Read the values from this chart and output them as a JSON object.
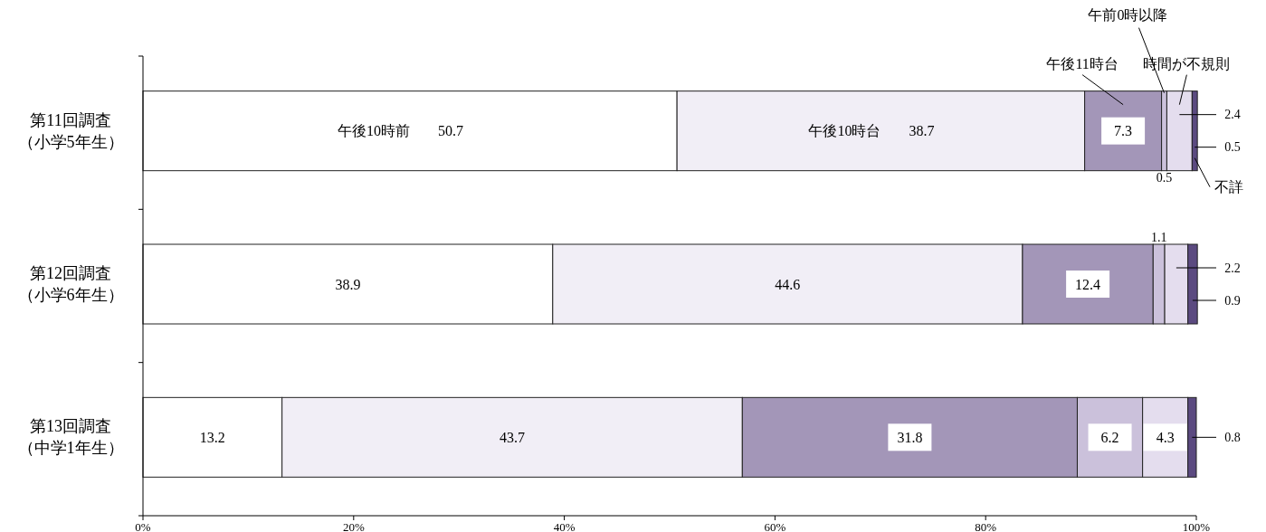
{
  "chart_data": {
    "type": "bar",
    "orientation": "horizontal",
    "stacked": true,
    "data_labels": true,
    "legend": false,
    "grid": false,
    "categories": [
      "第11回調査（小学5年生）",
      "第12回調査（小学6年生）",
      "第13回調査（中学1年生）"
    ],
    "xlim": [
      0,
      100
    ],
    "xticks": [
      {
        "value": 0,
        "label": "0%"
      },
      {
        "value": 20,
        "label": "20%"
      },
      {
        "value": 40,
        "label": "40%"
      },
      {
        "value": 60,
        "label": "60%"
      },
      {
        "value": 80,
        "label": "80%"
      },
      {
        "value": 100,
        "label": "100%"
      }
    ],
    "series": [
      {
        "name": "午後10時前",
        "color": "#ffffff",
        "values": [
          50.7,
          38.9,
          13.2
        ]
      },
      {
        "name": "午後10時台",
        "color": "#f1eef6",
        "values": [
          38.7,
          44.6,
          43.7
        ]
      },
      {
        "name": "午後11時台",
        "color": "#a396b8",
        "values": [
          7.3,
          12.4,
          31.8
        ]
      },
      {
        "name": "午前0時以降",
        "color": "#cbc1db",
        "values": [
          0.5,
          1.1,
          6.2
        ]
      },
      {
        "name": "時間が不規則",
        "color": "#e4ddee",
        "values": [
          2.4,
          2.2,
          4.3
        ]
      },
      {
        "name": "不詳",
        "color": "#5b4a80",
        "values": [
          0.5,
          0.9,
          0.8
        ]
      }
    ]
  }
}
